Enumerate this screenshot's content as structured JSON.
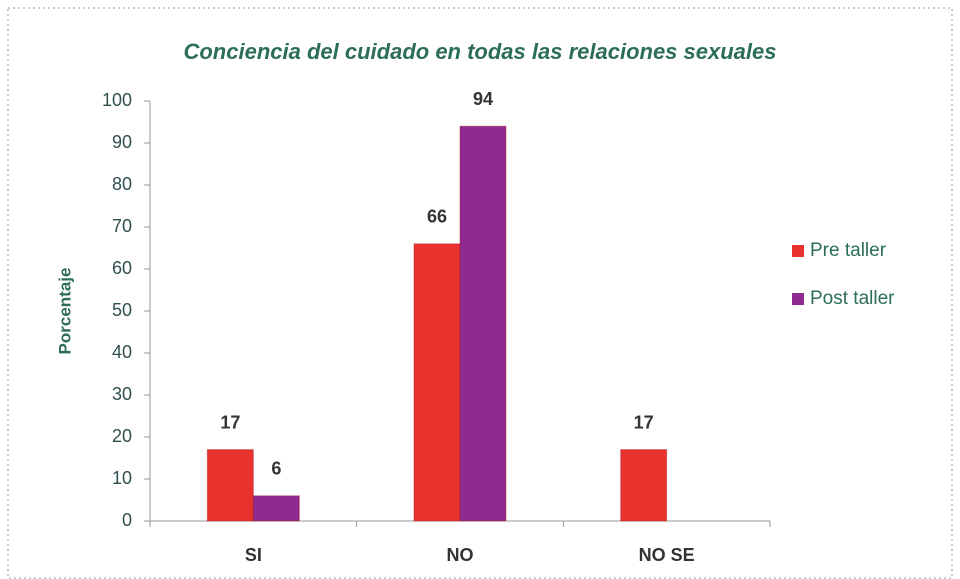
{
  "chart_data": {
    "type": "bar",
    "title": "Conciencia del cuidado en todas las relaciones sexuales",
    "ylabel": "Porcentaje",
    "categories": [
      "SI",
      "NO",
      "NO SE"
    ],
    "series": [
      {
        "name": "Pre taller",
        "color": "#e8322e",
        "values": [
          17,
          66,
          17
        ]
      },
      {
        "name": "Post taller",
        "color": "#8e2a90",
        "values": [
          6,
          94,
          null
        ]
      }
    ],
    "ylim": [
      0,
      100
    ],
    "yticks": [
      0,
      10,
      20,
      30,
      40,
      50,
      60,
      70,
      80,
      90,
      100
    ],
    "legend": "right"
  }
}
